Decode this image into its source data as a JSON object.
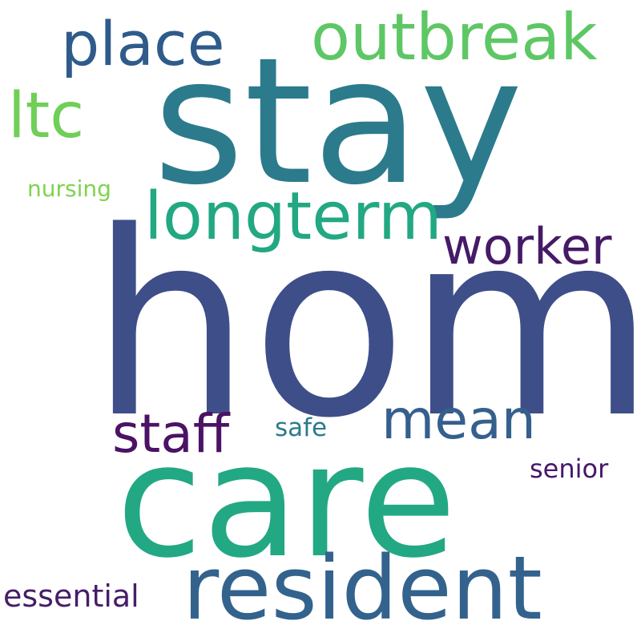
{
  "word_cloud": {
    "background": "#ffffff",
    "words": {
      "home": {
        "text": "home",
        "color": "#3e4e89"
      },
      "stay": {
        "text": "stay",
        "color": "#2b7b8c"
      },
      "care": {
        "text": "care",
        "color": "#23a884"
      },
      "resident": {
        "text": "resident",
        "color": "#33638d"
      },
      "longterm": {
        "text": "longterm",
        "color": "#22a883"
      },
      "outbreak": {
        "text": "outbreak",
        "color": "#5ec765"
      },
      "place": {
        "text": "place",
        "color": "#2f5b8b"
      },
      "ltc": {
        "text": "ltc",
        "color": "#6fcf56"
      },
      "worker": {
        "text": "worker",
        "color": "#461a66"
      },
      "mean": {
        "text": "mean",
        "color": "#35608d"
      },
      "staff": {
        "text": "staff",
        "color": "#4b1265"
      },
      "essential": {
        "text": "essential",
        "color": "#451e67"
      },
      "senior": {
        "text": "senior",
        "color": "#46176a"
      },
      "safe": {
        "text": "safe",
        "color": "#2c7b8c"
      },
      "nursing": {
        "text": "nursing",
        "color": "#7fd34e"
      }
    }
  }
}
